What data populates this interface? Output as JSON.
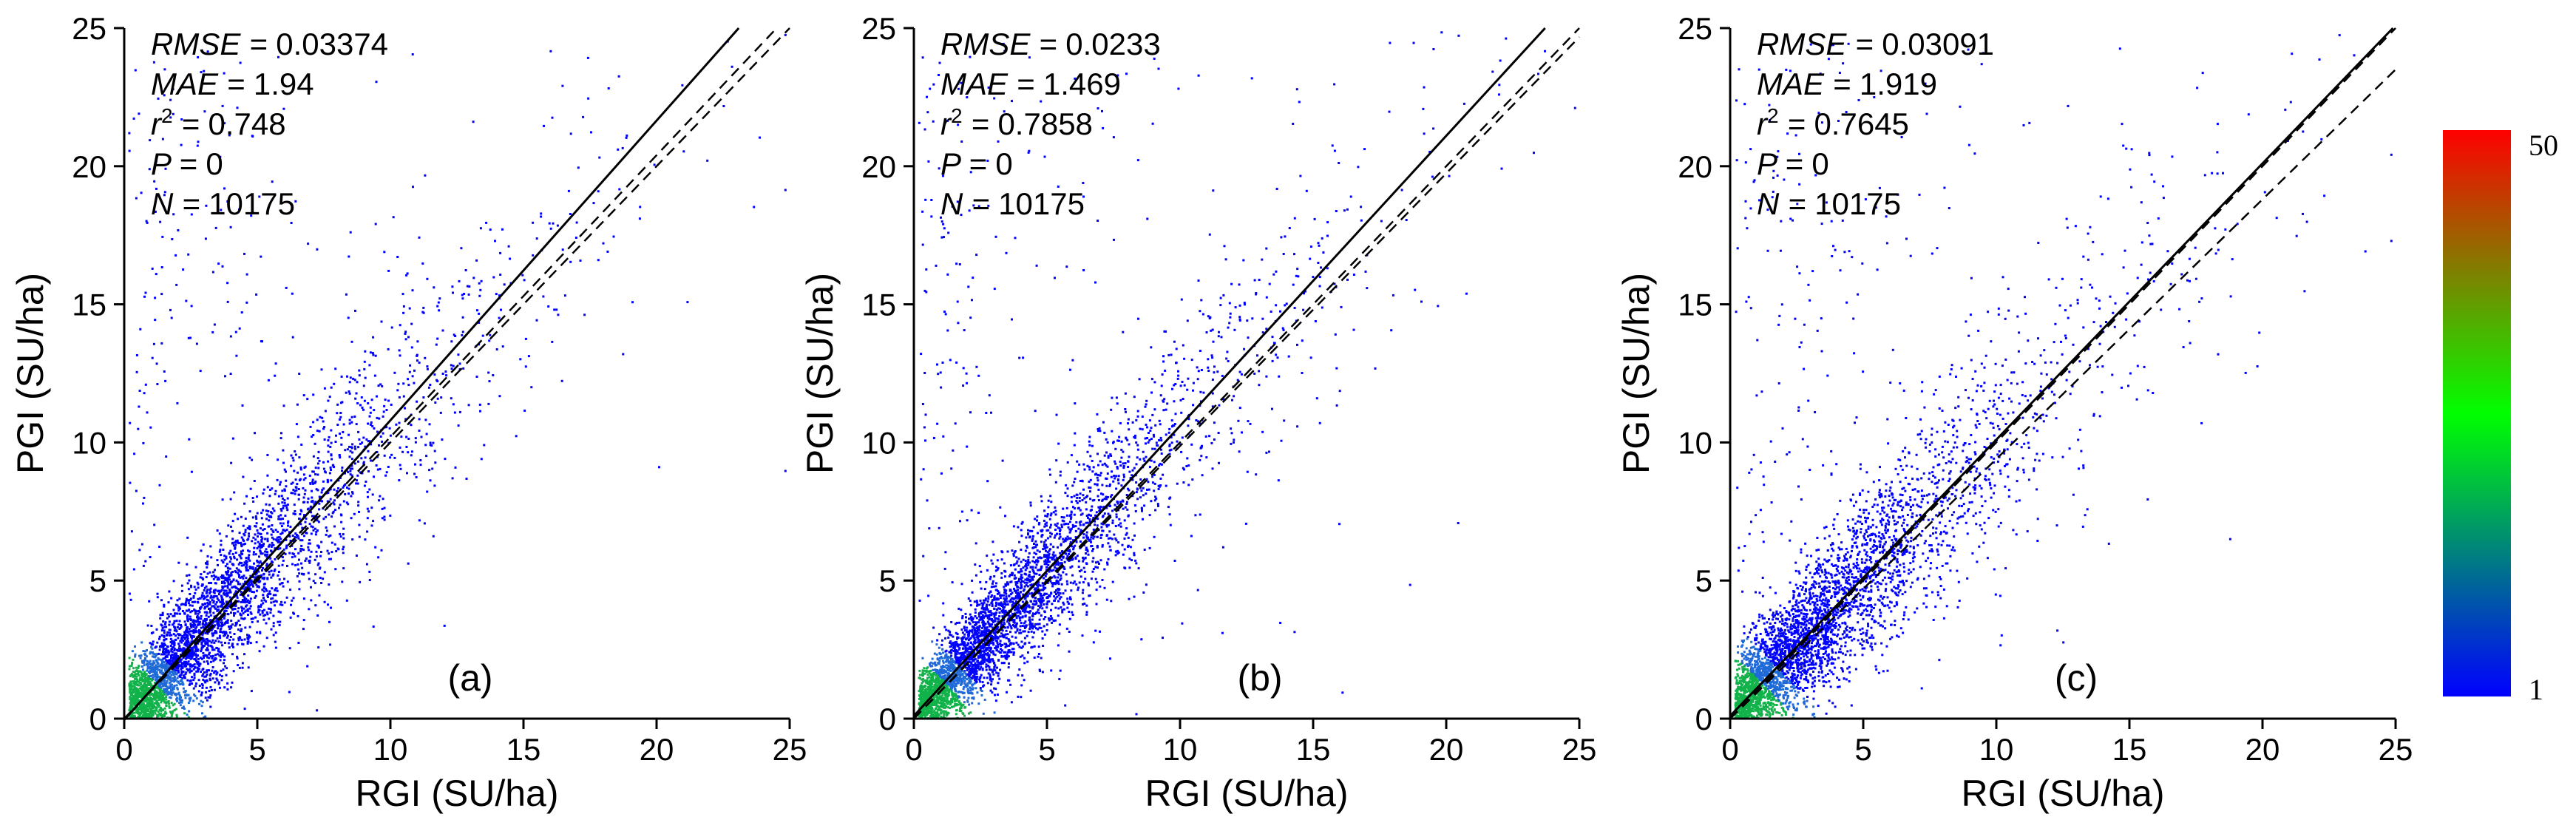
{
  "figure": {
    "colorbar": {
      "min_label": "1",
      "max_label": "50",
      "colors": [
        "#0000ff",
        "#00ff00",
        "#ff0000"
      ]
    },
    "point_color": "#0000ff"
  },
  "chart_data": [
    {
      "type": "scatter",
      "panel_label": "(a)",
      "xlabel": "RGI (SU/ha)",
      "ylabel": "PGI (SU/ha)",
      "xlim": [
        0,
        25
      ],
      "ylim": [
        0,
        25
      ],
      "xticks": [
        "0",
        "5",
        "10",
        "15",
        "20",
        "25"
      ],
      "yticks": [
        "0",
        "5",
        "10",
        "15",
        "20",
        "25"
      ],
      "stats": {
        "RMSE": "0.03374",
        "MAE": "1.94",
        "r2": "0.748",
        "P": "0",
        "N": "10175"
      },
      "fit_slope": 1.085,
      "fit_intercept": -0.05,
      "point_count": 10175,
      "spread": 1.7
    },
    {
      "type": "scatter",
      "panel_label": "(b)",
      "xlabel": "RGI (SU/ha)",
      "ylabel": "PGI (SU/ha)",
      "xlim": [
        0,
        25
      ],
      "ylim": [
        0,
        25
      ],
      "xticks": [
        "0",
        "5",
        "10",
        "15",
        "20",
        "25"
      ],
      "yticks": [
        "0",
        "5",
        "10",
        "15",
        "20",
        "25"
      ],
      "stats": {
        "RMSE": "0.0233",
        "MAE": "1.469",
        "r2": "0.7858",
        "P": "0",
        "N": "10175"
      },
      "fit_slope": 1.05,
      "fit_intercept": 0.1,
      "point_count": 10175,
      "spread": 1.3
    },
    {
      "type": "scatter",
      "panel_label": "(c)",
      "xlabel": "RGI (SU/ha)",
      "ylabel": "PGI (SU/ha)",
      "xlim": [
        0,
        25
      ],
      "ylim": [
        0,
        25
      ],
      "xticks": [
        "0",
        "5",
        "10",
        "15",
        "20",
        "25"
      ],
      "yticks": [
        "0",
        "5",
        "10",
        "15",
        "20",
        "25"
      ],
      "stats": {
        "RMSE": "0.03091",
        "MAE": "1.919",
        "r2": "0.7645",
        "P": "0",
        "N": "10175"
      },
      "fit_slope": 1.0,
      "fit_intercept": 0.1,
      "point_count": 10175,
      "spread": 1.8
    }
  ]
}
